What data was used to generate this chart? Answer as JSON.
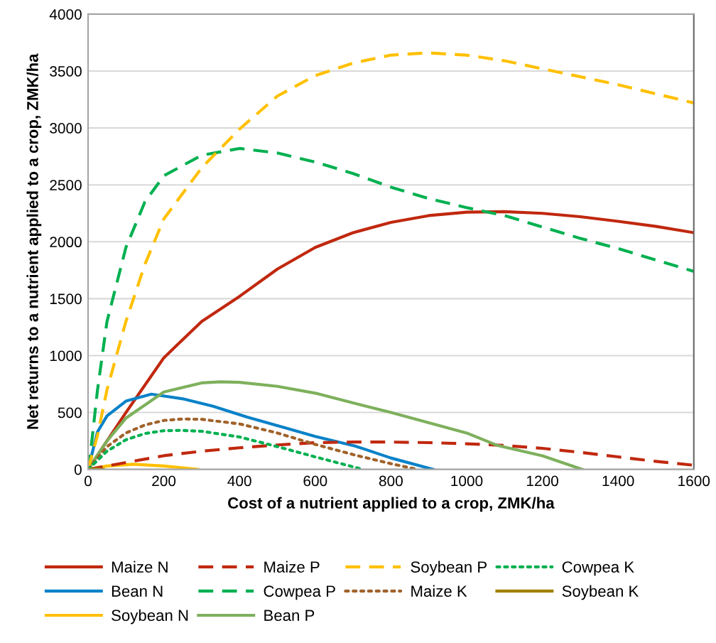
{
  "chart_data": {
    "type": "line",
    "xlabel": "Cost of a nutrient applied to a crop, ZMK/ha",
    "ylabel": "Net returns to a nutrient applied to a crop, ZMK/ha",
    "xlim": [
      0,
      1600
    ],
    "xticks": [
      0,
      200,
      400,
      600,
      800,
      1000,
      1200,
      1400,
      1600
    ],
    "ylim": [
      0,
      4000
    ],
    "yticks": [
      0,
      500,
      1000,
      1500,
      2000,
      2500,
      3000,
      3500,
      4000
    ],
    "grid": "y",
    "legend": "bottom",
    "marker": "none",
    "series": [
      {
        "name": "Maize N",
        "color": "#c0280e",
        "line_style": "solid",
        "x": [
          0,
          100,
          200,
          300,
          400,
          500,
          600,
          700,
          800,
          900,
          1000,
          1100,
          1200,
          1300,
          1400,
          1500,
          1600
        ],
        "values": [
          0,
          500,
          980,
          1300,
          1520,
          1760,
          1950,
          2080,
          2170,
          2230,
          2260,
          2265,
          2250,
          2220,
          2180,
          2135,
          2080
        ]
      },
      {
        "name": "Bean N",
        "color": "#0a82c8",
        "line_style": "solid",
        "x": [
          0,
          25,
          50,
          100,
          167,
          250,
          330,
          420,
          518,
          600,
          705,
          800,
          912
        ],
        "values": [
          0,
          330,
          470,
          600,
          661,
          620,
          555,
          460,
          368,
          290,
          206,
          100,
          0
        ]
      },
      {
        "name": "Soybean N",
        "color": "#ffc000",
        "line_style": "solid",
        "x": [
          0,
          50,
          120,
          200,
          290
        ],
        "values": [
          0,
          30,
          45,
          30,
          0
        ]
      },
      {
        "name": "Maize P",
        "color": "#c0280e",
        "line_style": "dashed",
        "x": [
          0,
          100,
          200,
          300,
          400,
          500,
          600,
          700,
          800,
          900,
          1000,
          1100,
          1200,
          1300,
          1400,
          1500,
          1600
        ],
        "values": [
          0,
          60,
          120,
          160,
          190,
          215,
          235,
          240,
          240,
          235,
          225,
          210,
          185,
          150,
          110,
          70,
          37
        ]
      },
      {
        "name": "Cowpea P",
        "color": "#00b050",
        "line_style": "dashed",
        "x": [
          0,
          10,
          25,
          50,
          100,
          150,
          200,
          300,
          400,
          500,
          600,
          700,
          800,
          900,
          1000,
          1100,
          1200,
          1300,
          1400,
          1500,
          1600
        ],
        "values": [
          0,
          250,
          700,
          1300,
          1950,
          2350,
          2580,
          2760,
          2820,
          2780,
          2700,
          2600,
          2480,
          2380,
          2300,
          2230,
          2130,
          2030,
          1940,
          1840,
          1740
        ]
      },
      {
        "name": "Bean P",
        "color": "#7eb05c",
        "line_style": "solid",
        "x": [
          0,
          50,
          100,
          200,
          300,
          350,
          400,
          500,
          600,
          705,
          800,
          900,
          1000,
          1080,
          1200,
          1305
        ],
        "values": [
          0,
          250,
          450,
          680,
          760,
          770,
          765,
          730,
          670,
          580,
          500,
          410,
          320,
          212,
          120,
          0
        ]
      },
      {
        "name": "Soybean P",
        "color": "#ffc000",
        "line_style": "dashed",
        "x": [
          0,
          25,
          50,
          100,
          150,
          200,
          300,
          350,
          400,
          500,
          600,
          700,
          800,
          900,
          1000,
          1100,
          1200,
          1300,
          1400,
          1500,
          1600
        ],
        "values": [
          0,
          300,
          700,
          1300,
          1800,
          2200,
          2650,
          2820,
          2990,
          3280,
          3460,
          3570,
          3640,
          3660,
          3640,
          3590,
          3520,
          3450,
          3380,
          3300,
          3220
        ]
      },
      {
        "name": "Maize K",
        "color": "#a0622a",
        "line_style": "dotted",
        "x": [
          0,
          50,
          100,
          150,
          200,
          250,
          300,
          400,
          500,
          600,
          700,
          800,
          870
        ],
        "values": [
          0,
          200,
          320,
          390,
          430,
          443,
          440,
          400,
          320,
          220,
          130,
          50,
          0
        ]
      },
      {
        "name": "Cowpea K",
        "color": "#00b050",
        "line_style": "dotted",
        "x": [
          0,
          50,
          100,
          150,
          200,
          245,
          300,
          400,
          500,
          600,
          726
        ],
        "values": [
          0,
          160,
          260,
          315,
          340,
          343,
          335,
          285,
          200,
          110,
          0
        ]
      },
      {
        "name": "Soybean K",
        "color": "#a08000",
        "line_style": "solid",
        "x": [
          0,
          20,
          40
        ],
        "values": [
          0,
          5,
          0
        ]
      }
    ]
  }
}
